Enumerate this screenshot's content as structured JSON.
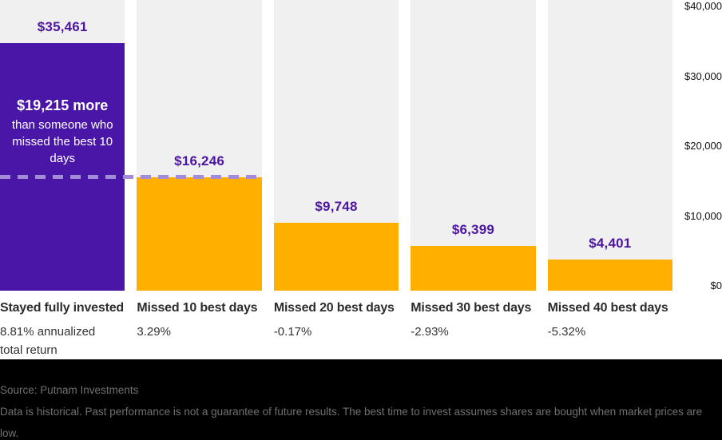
{
  "chart_data": {
    "type": "bar",
    "title": "",
    "xlabel": "",
    "ylabel": "",
    "categories": [
      "Stayed fully invested",
      "Missed 10 best days",
      "Missed 20 best days",
      "Missed 30 best days",
      "Missed 40 best days"
    ],
    "values": [
      35461,
      16246,
      9748,
      6399,
      4401
    ],
    "value_labels": [
      "$35,461",
      "$16,246",
      "$9,748",
      "$6,399",
      "$4,401"
    ],
    "sub_labels": [
      [
        "8.81% annualized",
        "total return"
      ],
      [
        "3.29%"
      ],
      [
        "-0.17%"
      ],
      [
        "-2.93%"
      ],
      [
        "-5.32%"
      ]
    ],
    "ylim": [
      0,
      40000
    ],
    "y_ticks": [
      "$40,000",
      "$30,000",
      "$20,000",
      "$10,000",
      "$0"
    ],
    "grid": false,
    "legend": false,
    "annotation": {
      "headline": "$19,215 more",
      "body": "than someone who missed the best 10 days"
    },
    "reference_line": {
      "value": 16246,
      "style": "dashed"
    }
  },
  "colors": {
    "highlight_bar": "#4a16a8",
    "bar": "#ffaf00",
    "column_bg": "#f0f0f0",
    "value_label": "#4c16a1",
    "dashed_line": "#a28bd8",
    "footer_bg": "#000000",
    "footer_text": "#707070"
  },
  "footer": {
    "source": "Source: Putnam Investments",
    "disclaimer": "Data is historical. Past performance is not a guarantee of future results. The best time to invest assumes shares are bought when market prices are low."
  }
}
